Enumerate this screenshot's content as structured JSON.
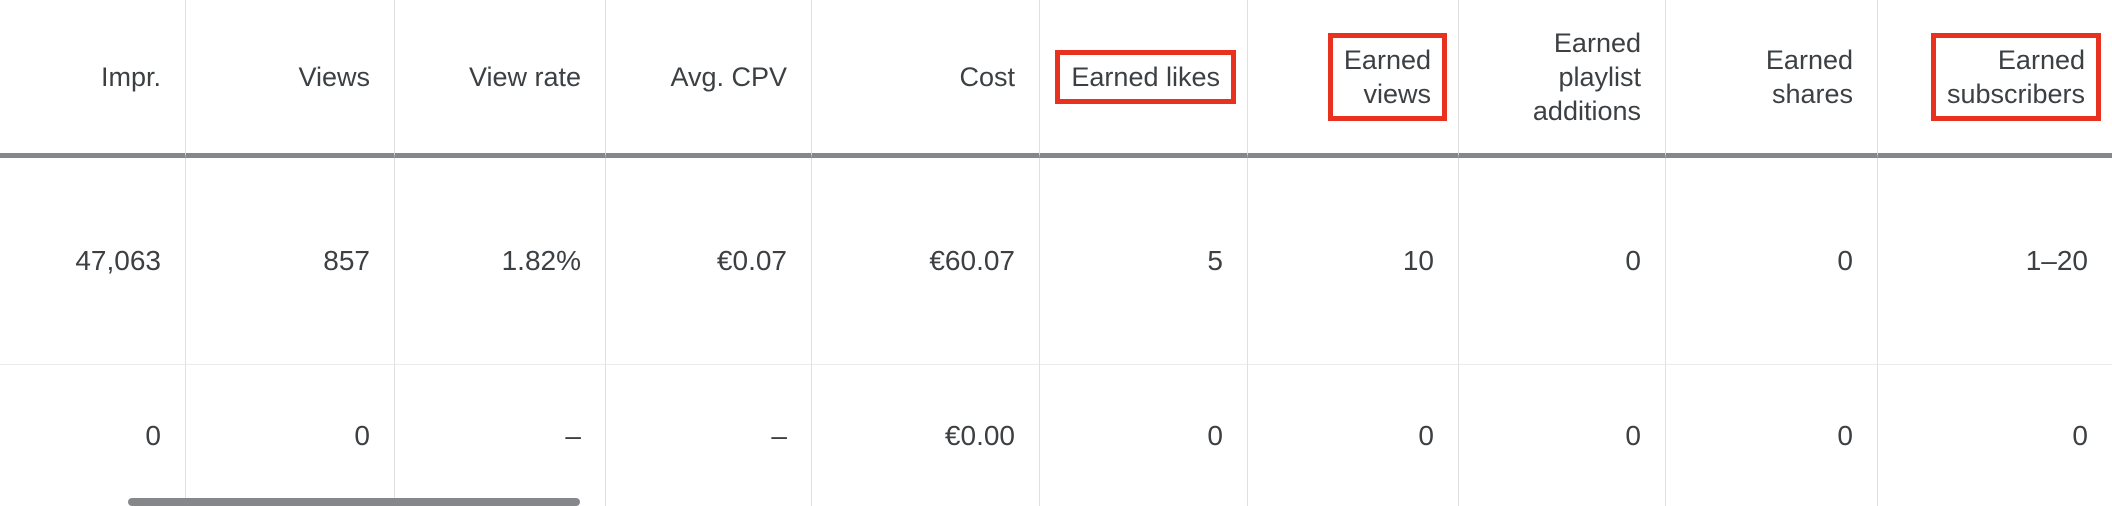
{
  "table": {
    "columns": [
      {
        "label": "Impr.",
        "flagged": false
      },
      {
        "label": "Views",
        "flagged": false
      },
      {
        "label": "View rate",
        "flagged": false
      },
      {
        "label": "Avg. CPV",
        "flagged": false
      },
      {
        "label": "Cost",
        "flagged": false
      },
      {
        "label": "Earned likes",
        "flagged": true
      },
      {
        "label": "Earned\nviews",
        "flagged": true
      },
      {
        "label": "Earned\nplaylist\nadditions",
        "flagged": false
      },
      {
        "label": "Earned\nshares",
        "flagged": false
      },
      {
        "label": "Earned\nsubscribers",
        "flagged": true
      }
    ],
    "rows": [
      {
        "cells": [
          "47,063",
          "857",
          "1.82%",
          "€0.07",
          "€60.07",
          "5",
          "10",
          "0",
          "0",
          "1–20"
        ]
      },
      {
        "cells": [
          "0",
          "0",
          "–",
          "–",
          "€0.00",
          "0",
          "0",
          "0",
          "0",
          "0"
        ]
      }
    ]
  },
  "colors": {
    "highlight_box": "#e8321f",
    "header_text": "#3c4043",
    "value_text": "#3c4043",
    "header_underline": "#84888b",
    "grid_line": "#e0e0e0",
    "scrollbar_thumb": "#85878a"
  }
}
